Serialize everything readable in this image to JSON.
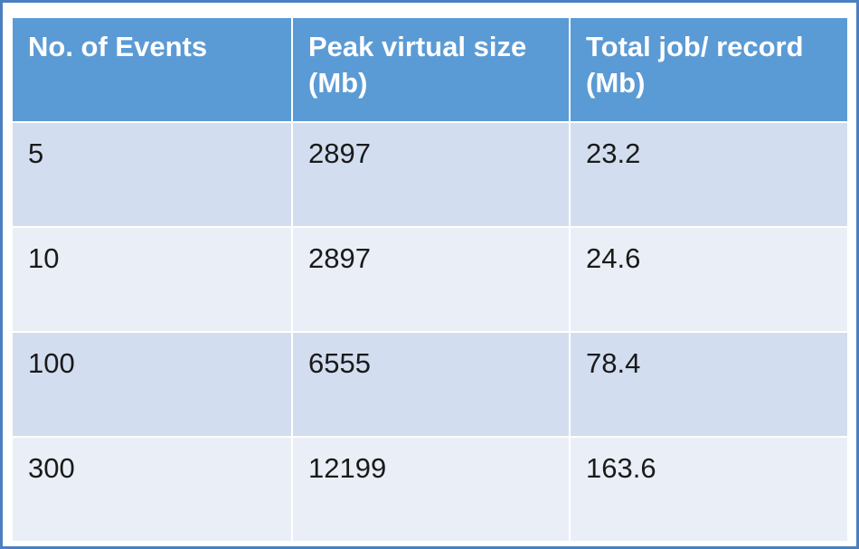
{
  "chart_data": {
    "type": "table",
    "columns": [
      "No. of Events",
      "Peak virtual size (Mb)",
      "Total job/ record (Mb)"
    ],
    "rows": [
      [
        "5",
        "2897",
        "23.2"
      ],
      [
        "10",
        "2897",
        "24.6"
      ],
      [
        "100",
        "6555",
        "78.4"
      ],
      [
        "300",
        "12199",
        "163.6"
      ]
    ]
  },
  "colors": {
    "header_bg": "#5b9bd5",
    "header_text": "#ffffff",
    "row_odd_bg": "#d2def0",
    "row_even_bg": "#eaeff7",
    "frame_border": "#4a7fc1"
  }
}
